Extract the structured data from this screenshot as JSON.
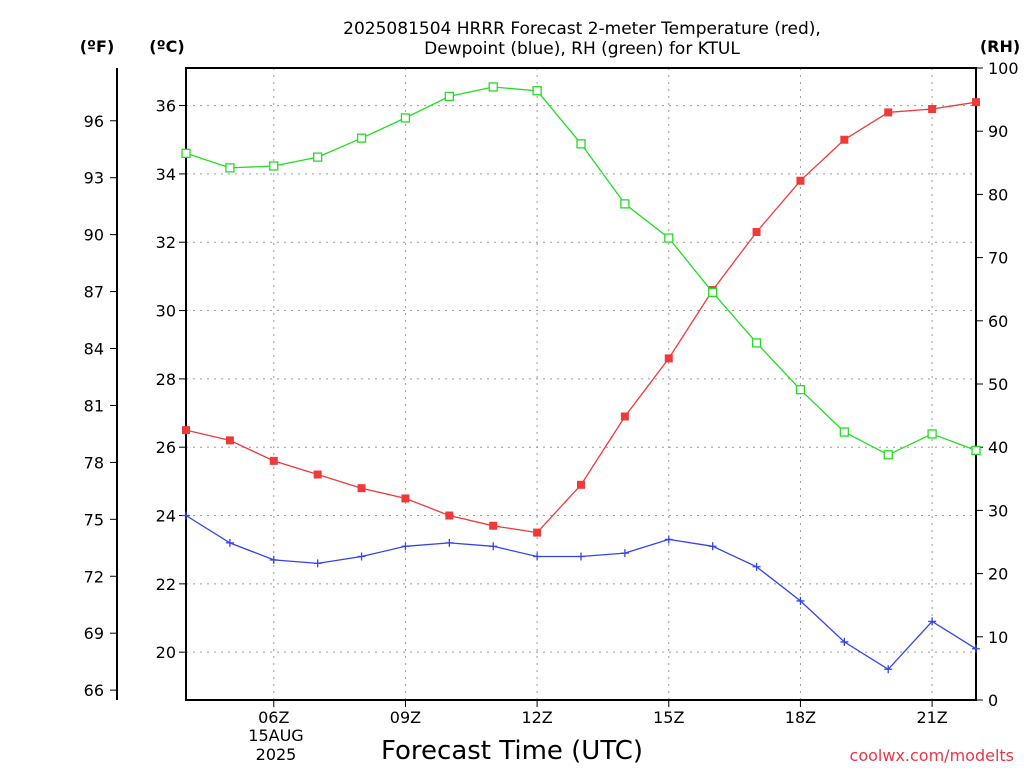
{
  "chart_data": {
    "type": "line",
    "title_line1": "2025081504 HRRR Forecast 2-meter Temperature (red),",
    "title_line2": "Dewpoint (blue), RH (green) for KTUL",
    "xlabel": "Forecast Time (UTC)",
    "credit": "coolwx.com/modelts",
    "unit_f": "(ºF)",
    "unit_c": "(ºC)",
    "unit_rh": "(RH)",
    "date_label": [
      "15AUG",
      "2025"
    ],
    "x_hours": [
      4,
      5,
      6,
      7,
      8,
      9,
      10,
      11,
      12,
      13,
      14,
      15,
      16,
      17,
      18,
      19,
      20,
      21,
      22
    ],
    "x_range": [
      4,
      22
    ],
    "x_ticks": [
      {
        "hour": 6,
        "label": "06Z"
      },
      {
        "hour": 9,
        "label": "09Z"
      },
      {
        "hour": 12,
        "label": "12Z"
      },
      {
        "hour": 15,
        "label": "15Z"
      },
      {
        "hour": 18,
        "label": "18Z"
      },
      {
        "hour": 21,
        "label": "21Z"
      }
    ],
    "c_range": [
      18.6,
      37.1
    ],
    "c_ticks": [
      20,
      22,
      24,
      26,
      28,
      30,
      32,
      34,
      36
    ],
    "f_ticks": [
      66,
      69,
      72,
      75,
      78,
      81,
      84,
      87,
      90,
      93,
      96
    ],
    "rh_range": [
      0,
      100
    ],
    "rh_ticks": [
      0,
      10,
      20,
      30,
      40,
      50,
      60,
      70,
      80,
      90,
      100
    ],
    "grid": true,
    "series": [
      {
        "name": "Temperature",
        "axis": "C",
        "color": "#f03a3a",
        "marker": "filled-square",
        "values": [
          26.5,
          26.2,
          25.6,
          25.2,
          24.8,
          24.5,
          24.0,
          23.7,
          23.5,
          24.9,
          26.9,
          28.6,
          30.6,
          32.3,
          33.8,
          35.0,
          35.8,
          35.9,
          36.1
        ]
      },
      {
        "name": "Dewpoint",
        "axis": "C",
        "color": "#3344ee",
        "marker": "plus",
        "values": [
          24.0,
          23.2,
          22.7,
          22.6,
          22.8,
          23.1,
          23.2,
          23.1,
          22.8,
          22.8,
          22.9,
          23.3,
          23.1,
          22.5,
          21.5,
          20.3,
          19.5,
          20.9,
          20.1
        ]
      },
      {
        "name": "RH",
        "axis": "RH",
        "color": "#22dd22",
        "marker": "open-square",
        "values": [
          86.5,
          84.2,
          84.5,
          85.9,
          88.9,
          92.1,
          95.5,
          97.0,
          96.4,
          88.0,
          78.5,
          73.1,
          64.5,
          56.5,
          49.1,
          42.4,
          38.8,
          42.1,
          39.5
        ]
      }
    ]
  }
}
